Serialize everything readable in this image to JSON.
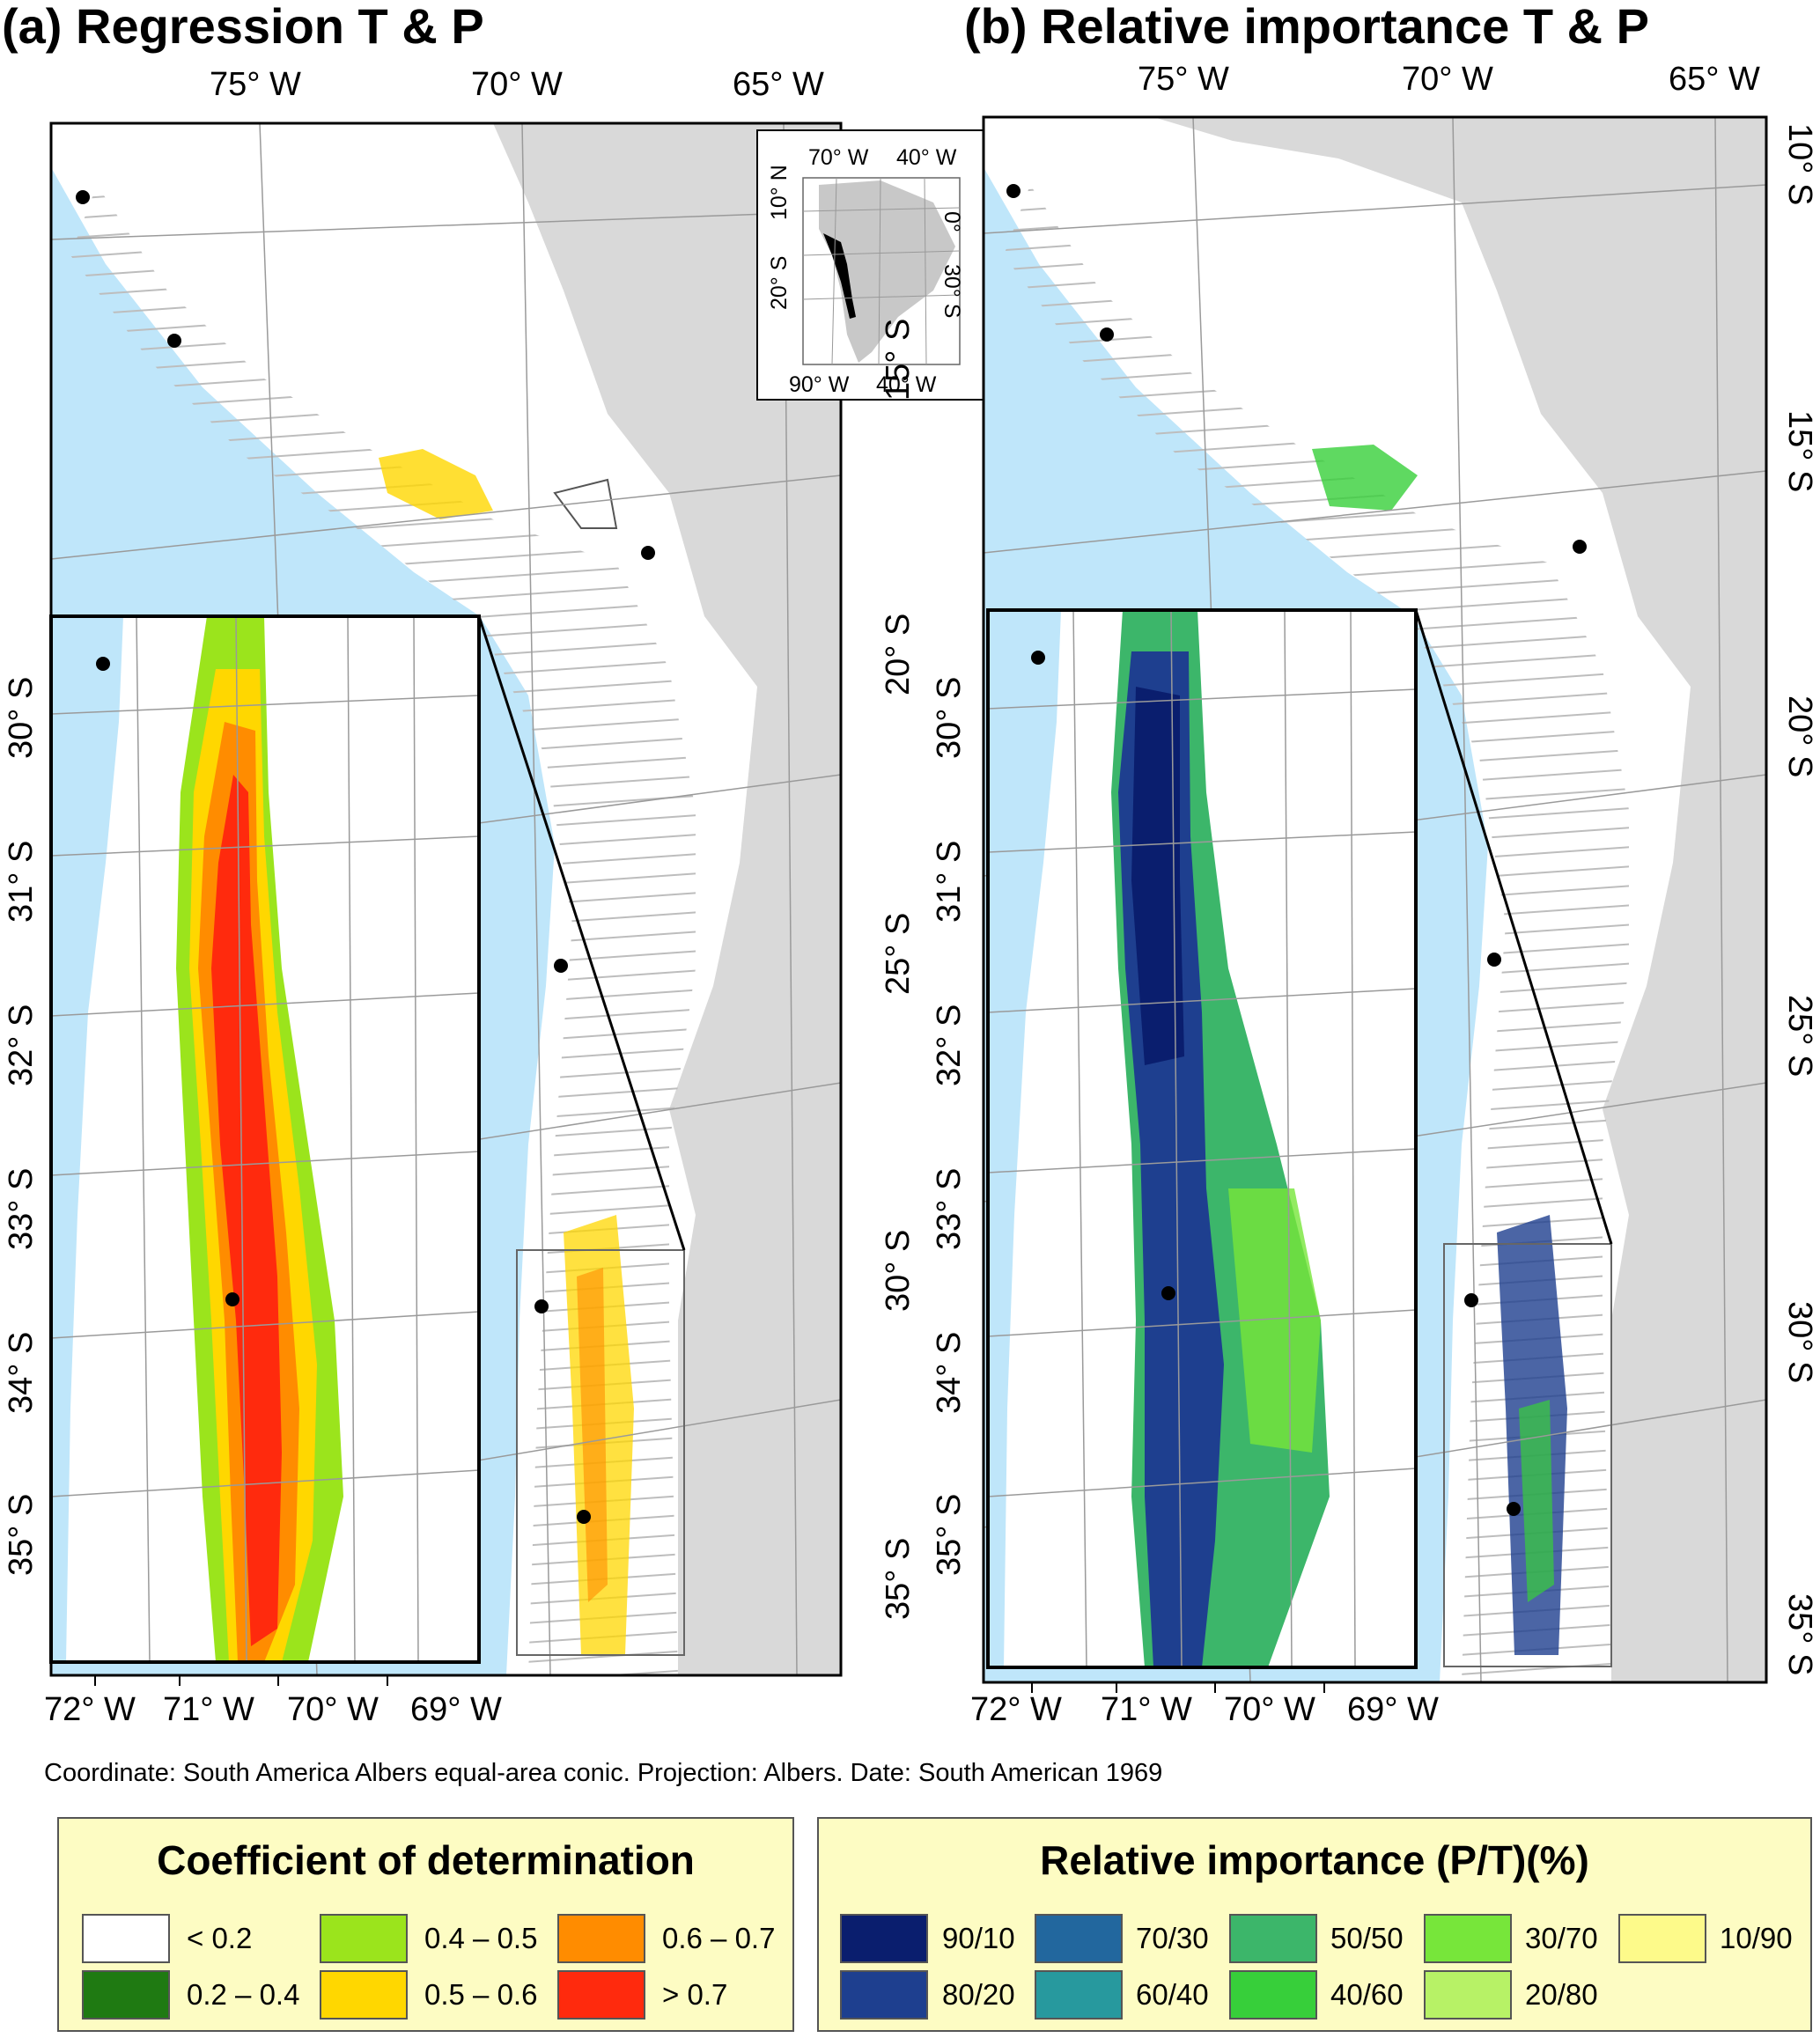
{
  "panel_a": {
    "title": "(a) Regression T & P",
    "top_ticks": [
      "75° W",
      "70° W",
      "65° W"
    ],
    "right_ticks": [
      "15° S",
      "20° S",
      "25° S",
      "30° S",
      "35° S"
    ],
    "inset_left_ticks": [
      "30° S",
      "31° S",
      "32° S",
      "33° S",
      "34° S",
      "35° S"
    ],
    "bottom_ticks": [
      "72° W",
      "71° W",
      "70° W",
      "69° W"
    ]
  },
  "panel_b": {
    "title": "(b) Relative importance T & P",
    "top_ticks": [
      "75° W",
      "70° W",
      "65° W"
    ],
    "right_ticks": [
      "10° S",
      "15° S",
      "20° S",
      "25° S",
      "30° S",
      "35° S"
    ],
    "inset_left_ticks": [
      "30° S",
      "31° S",
      "32° S",
      "33° S",
      "34° S",
      "35° S"
    ],
    "bottom_ticks": [
      "72° W",
      "71° W",
      "70° W",
      "69° W"
    ]
  },
  "locator": {
    "top_labels": [
      "70° W",
      "40° W"
    ],
    "left_labels": [
      "10° N",
      "20° S"
    ],
    "right_labels": [
      "0°",
      "30° S"
    ],
    "bottom_labels": [
      "90° W",
      "40° W"
    ]
  },
  "footnote": "Coordinate: South America Albers equal-area conic. Projection: Albers. Date: South American 1969",
  "legend_r2": {
    "title": "Coefficient of determination",
    "items": [
      {
        "label": "< 0.2",
        "color": "#ffffff"
      },
      {
        "label": "0.2 – 0.4",
        "color": "#1f7a12"
      },
      {
        "label": "0.4 – 0.5",
        "color": "#9be41c"
      },
      {
        "label": "0.5 – 0.6",
        "color": "#ffd700"
      },
      {
        "label": "0.6 – 0.7",
        "color": "#ff8c00"
      },
      {
        "label": "> 0.7",
        "color": "#ff2a0d"
      }
    ]
  },
  "legend_ri": {
    "title": "Relative importance (P/T)(%)",
    "items": [
      {
        "label": "90/10",
        "color": "#0a1e6e"
      },
      {
        "label": "80/20",
        "color": "#1e3f8f"
      },
      {
        "label": "70/30",
        "color": "#22679e"
      },
      {
        "label": "60/40",
        "color": "#27999e"
      },
      {
        "label": "50/50",
        "color": "#3cb66a"
      },
      {
        "label": "40/60",
        "color": "#37cf3a"
      },
      {
        "label": "30/70",
        "color": "#77e63a"
      },
      {
        "label": "20/80",
        "color": "#b7f266"
      },
      {
        "label": "10/90",
        "color": "#fdfa8a"
      }
    ]
  },
  "colors": {
    "ocean": "#bfe6fa",
    "land_grey": "#d9d9d9",
    "legend_bg": "#fdfcc3"
  }
}
